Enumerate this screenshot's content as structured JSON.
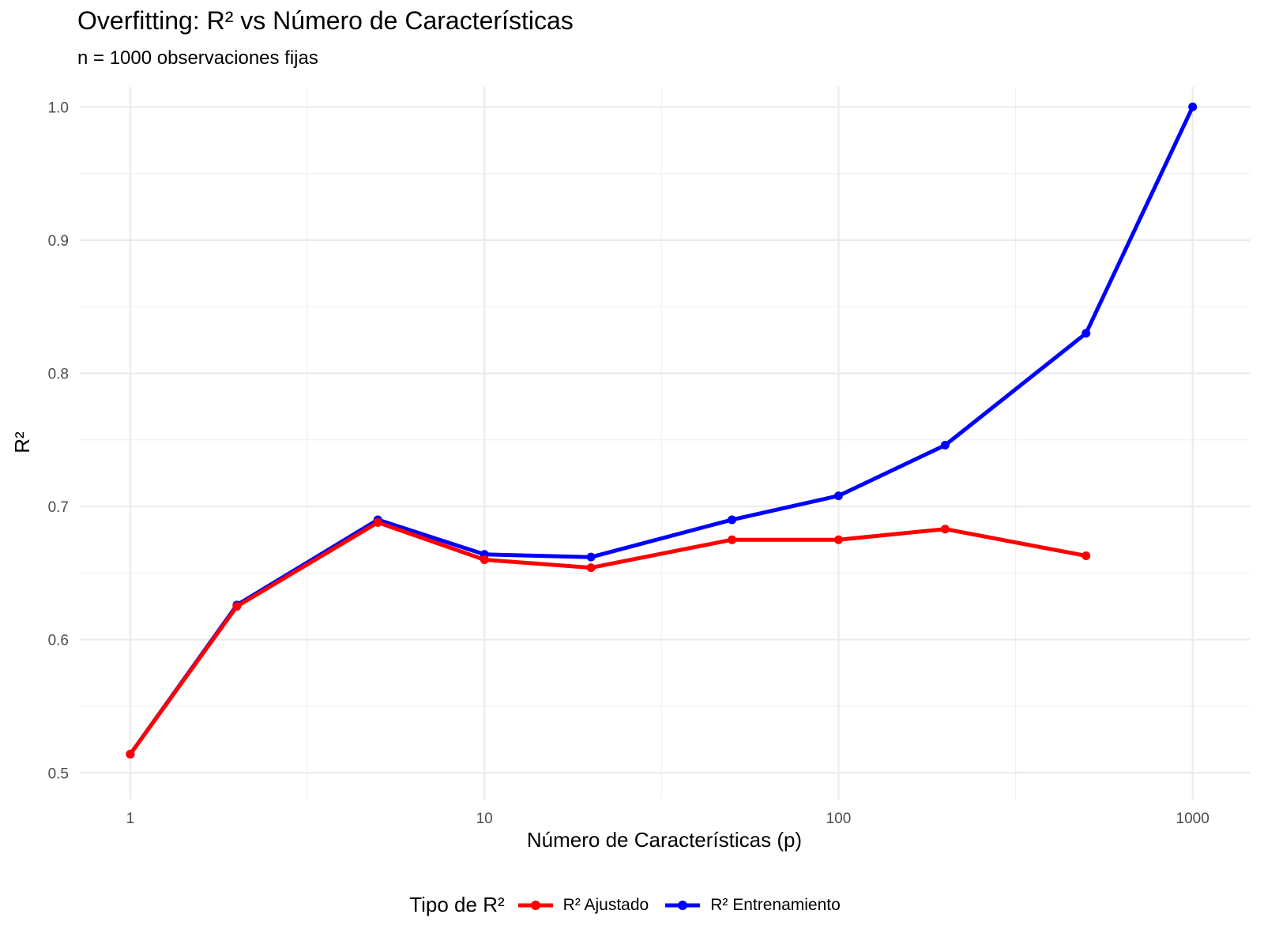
{
  "chart_data": {
    "type": "line",
    "title": "Overfitting: R² vs Número de Características",
    "subtitle": "n = 1000 observaciones fijas",
    "xlabel": "Número de Características (p)",
    "ylabel": "R²",
    "x_scale": "log10",
    "xlim": [
      0.72,
      1450
    ],
    "ylim": [
      0.48,
      1.015
    ],
    "x_ticks": [
      1,
      10,
      100,
      1000
    ],
    "x_tick_labels": [
      "1",
      "10",
      "100",
      "1000"
    ],
    "y_ticks": [
      0.5,
      0.6,
      0.7,
      0.8,
      0.9,
      1.0
    ],
    "y_tick_labels": [
      "0.5",
      "0.6",
      "0.7",
      "0.8",
      "0.9",
      "1.0"
    ],
    "grid": true,
    "legend": {
      "title": "Tipo de R²",
      "position": "bottom"
    },
    "series": [
      {
        "name": "R² Ajustado",
        "color": "#ff0000",
        "x": [
          1,
          2,
          5,
          10,
          20,
          50,
          100,
          200,
          500
        ],
        "y": [
          0.514,
          0.625,
          0.688,
          0.66,
          0.654,
          0.675,
          0.675,
          0.683,
          0.663
        ]
      },
      {
        "name": "R² Entrenamiento",
        "color": "#0000ff",
        "x": [
          1,
          2,
          5,
          10,
          20,
          50,
          100,
          200,
          500,
          1000
        ],
        "y": [
          0.514,
          0.626,
          0.69,
          0.664,
          0.662,
          0.69,
          0.708,
          0.746,
          0.83,
          1.0
        ]
      }
    ]
  }
}
